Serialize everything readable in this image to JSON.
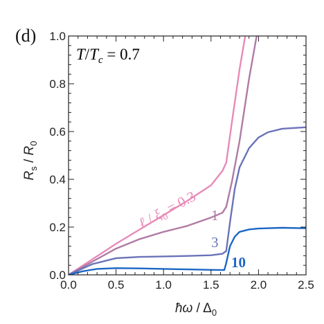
{
  "panel_label": "(d)",
  "annotation": "T/T_c = 0.7",
  "chart_data": {
    "type": "line",
    "xlabel": "ħω / Δ0",
    "ylabel": "Rs / R0",
    "xlim": [
      0.0,
      2.5
    ],
    "ylim": [
      0.0,
      1.0
    ],
    "xticks": [
      "0.0",
      "0.5",
      "1.0",
      "1.5",
      "2.0",
      "2.5"
    ],
    "yticks": [
      "0.0",
      "0.2",
      "0.4",
      "0.6",
      "0.8",
      "1.0"
    ],
    "grid": false,
    "series": [
      {
        "name": "ℓ/ξ0 = 0.3",
        "color": "#e78ab7",
        "x": [
          0.0,
          0.25,
          0.5,
          0.75,
          1.0,
          1.25,
          1.5,
          1.62,
          1.66,
          1.72,
          1.8,
          1.86
        ],
        "y": [
          0.0,
          0.065,
          0.13,
          0.19,
          0.25,
          0.31,
          0.375,
          0.435,
          0.47,
          0.64,
          0.86,
          1.0
        ]
      },
      {
        "name": "1",
        "color": "#b07aa4",
        "x": [
          0.0,
          0.25,
          0.5,
          0.75,
          1.0,
          1.25,
          1.5,
          1.62,
          1.66,
          1.72,
          1.8,
          1.9,
          1.98
        ],
        "y": [
          0.0,
          0.055,
          0.11,
          0.15,
          0.18,
          0.205,
          0.24,
          0.26,
          0.285,
          0.39,
          0.56,
          0.82,
          1.0
        ]
      },
      {
        "name": "3",
        "color": "#6a72b8",
        "x": [
          0.0,
          0.25,
          0.5,
          0.75,
          1.0,
          1.25,
          1.5,
          1.62,
          1.66,
          1.7,
          1.75,
          1.8,
          1.9,
          2.0,
          2.1,
          2.25,
          2.5
        ],
        "y": [
          0.0,
          0.045,
          0.07,
          0.075,
          0.077,
          0.079,
          0.082,
          0.088,
          0.1,
          0.22,
          0.36,
          0.45,
          0.53,
          0.575,
          0.597,
          0.612,
          0.618
        ]
      },
      {
        "name": "10",
        "color": "#1c66c4",
        "x": [
          0.0,
          0.15,
          0.3,
          0.5,
          0.75,
          1.0,
          1.25,
          1.5,
          1.64,
          1.66,
          1.7,
          1.75,
          1.8,
          1.9,
          2.0,
          2.25,
          2.5
        ],
        "y": [
          0.0,
          0.015,
          0.025,
          0.028,
          0.027,
          0.025,
          0.023,
          0.021,
          0.02,
          0.05,
          0.12,
          0.16,
          0.18,
          0.19,
          0.194,
          0.197,
          0.195
        ]
      }
    ]
  }
}
